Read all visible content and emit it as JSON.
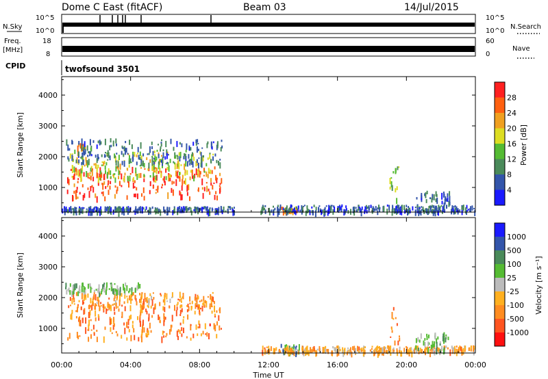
{
  "header": {
    "station": "Dome C East (fitACF)",
    "beam": "Beam 03",
    "date": "14/Jul/2015"
  },
  "nsky_panel": {
    "left_label": "N.Sky",
    "right_label": "N.Search",
    "ticks_left": [
      "10^5",
      "10^0"
    ],
    "ticks_right": [
      "10^5",
      "10^0"
    ]
  },
  "freq_panel": {
    "left_label_top": "Freq.",
    "left_label_unit": "[MHz]",
    "right_label": "Nave",
    "ticks_left": [
      "18",
      "8"
    ],
    "ticks_right": [
      "60",
      "0"
    ]
  },
  "cpid_panel": {
    "label": "CPID",
    "text": "twofsound 3501"
  },
  "colors": {
    "power_scale": [
      "#1a1aff",
      "#3355aa",
      "#4a8a5a",
      "#55bb33",
      "#dddd22",
      "#f0a020",
      "#ff6010",
      "#ff2020"
    ],
    "velocity_scale": [
      "#ff1010",
      "#ff5520",
      "#ff8c20",
      "#ffb020",
      "#bbbbbb",
      "#55bb33",
      "#4a8a5a",
      "#3355aa",
      "#1a1aff"
    ]
  },
  "chart_data": [
    {
      "type": "heatmap",
      "name": "Power",
      "ylabel": "Slant Range [km]",
      "yticks": [
        "1000",
        "2000",
        "3000",
        "4000"
      ],
      "ylim": [
        200,
        4600
      ],
      "xlim": [
        "00:00",
        "24:00"
      ],
      "colorbar": {
        "label": "Power [dB]",
        "ticks": [
          "4",
          "8",
          "12",
          "16",
          "20",
          "24",
          "28"
        ],
        "range": [
          0,
          32
        ]
      },
      "regions": [
        {
          "t0": 0.3,
          "t1": 9.3,
          "r0": 700,
          "r1": 1700,
          "level": 0.85
        },
        {
          "t0": 0.4,
          "t1": 8.9,
          "r0": 1300,
          "r1": 2200,
          "level": 0.55
        },
        {
          "t0": 0.9,
          "t1": 1.4,
          "r0": 2250,
          "r1": 2450,
          "level": 0.8
        },
        {
          "t0": 0.2,
          "t1": 9.3,
          "r0": 1800,
          "r1": 2600,
          "level": 0.25
        },
        {
          "t0": 12.7,
          "t1": 13.7,
          "r0": 250,
          "r1": 400,
          "level": 0.75
        },
        {
          "t0": 11.5,
          "t1": 24.0,
          "r0": 250,
          "r1": 450,
          "level": 0.2
        },
        {
          "t0": 19.0,
          "t1": 19.6,
          "r0": 500,
          "r1": 1700,
          "level": 0.45
        },
        {
          "t0": 20.5,
          "t1": 22.5,
          "r0": 300,
          "r1": 900,
          "level": 0.2
        },
        {
          "t0": 0.0,
          "t1": 10.0,
          "r0": 250,
          "r1": 400,
          "level": 0.2
        }
      ]
    },
    {
      "type": "heatmap",
      "name": "Velocity",
      "ylabel": "Slant Range [km]",
      "yticks": [
        "1000",
        "2000",
        "3000",
        "4000"
      ],
      "ylim": [
        200,
        4600
      ],
      "xlim": [
        "00:00",
        "24:00"
      ],
      "xticks": [
        "00:00",
        "04:00",
        "08:00",
        "12:00",
        "16:00",
        "20:00",
        "00:00"
      ],
      "xlabel": "Time UT",
      "colorbar": {
        "label": "Velocity [m s⁻¹]",
        "ticks": [
          "-1000",
          "-500",
          "-100",
          "-25",
          "25",
          "100",
          "500",
          "1000"
        ]
      },
      "regions": [
        {
          "t0": 0.3,
          "t1": 9.3,
          "r0": 700,
          "r1": 1800,
          "level": 0.25
        },
        {
          "t0": 0.4,
          "t1": 8.9,
          "r0": 1700,
          "r1": 2200,
          "level": 0.32
        },
        {
          "t0": 0.2,
          "t1": 4.5,
          "r0": 2200,
          "r1": 2500,
          "level": 0.6
        },
        {
          "t0": 12.7,
          "t1": 14.0,
          "r0": 250,
          "r1": 500,
          "level": 0.7
        },
        {
          "t0": 11.5,
          "t1": 24.0,
          "r0": 250,
          "r1": 450,
          "level": 0.35
        },
        {
          "t0": 19.0,
          "t1": 19.6,
          "r0": 500,
          "r1": 1700,
          "level": 0.3
        },
        {
          "t0": 20.5,
          "t1": 22.5,
          "r0": 300,
          "r1": 900,
          "level": 0.6
        }
      ]
    }
  ]
}
